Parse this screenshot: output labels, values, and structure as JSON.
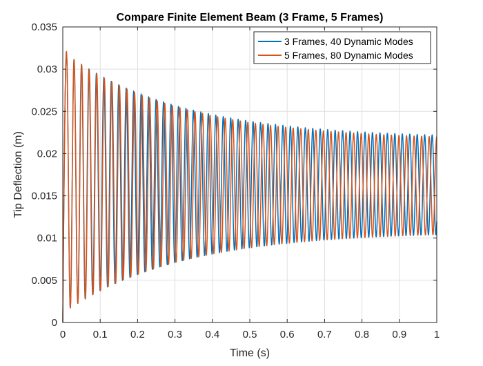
{
  "chart_data": {
    "type": "line",
    "title": "Compare Finite Element Beam (3 Frame, 5 Frames)",
    "xlabel": "Time (s)",
    "ylabel": "Tip Deflection (m)",
    "xlim": [
      0,
      1
    ],
    "ylim": [
      0,
      0.035
    ],
    "xticks": [
      0,
      0.1,
      0.2,
      0.3,
      0.4,
      0.5,
      0.6,
      0.7,
      0.8,
      0.9,
      1
    ],
    "xtick_labels": [
      "0",
      "0.1",
      "0.2",
      "0.3",
      "0.4",
      "0.5",
      "0.6",
      "0.7",
      "0.8",
      "0.9",
      "1"
    ],
    "yticks": [
      0,
      0.005,
      0.01,
      0.015,
      0.02,
      0.025,
      0.03,
      0.035
    ],
    "ytick_labels": [
      "0",
      "0.005",
      "0.01",
      "0.015",
      "0.02",
      "0.025",
      "0.03",
      "0.035"
    ],
    "grid": true,
    "legend_position": "top-right",
    "series": [
      {
        "name": "3 Frames, 40 Dynamic Modes",
        "color": "#0072BD",
        "form": "damped oscillation",
        "period_s": 0.01995,
        "first_peak": [
          0.0101,
          0.0321
        ],
        "first_trough": [
          0.0204,
          0.0011
        ],
        "last_peak": [
          0.999,
          0.0222
        ],
        "last_trough": [
          0.992,
          0.0104
        ]
      },
      {
        "name": "5 Frames, 80 Dynamic Modes",
        "color": "#D95319",
        "form": "damped oscillation",
        "period_s": 0.0202,
        "first_peak": [
          0.0101,
          0.0321
        ],
        "first_trough": [
          0.0204,
          0.0011
        ],
        "last_peak": [
          0.989,
          0.022
        ],
        "last_trough": [
          0.999,
          0.0104
        ]
      }
    ]
  }
}
